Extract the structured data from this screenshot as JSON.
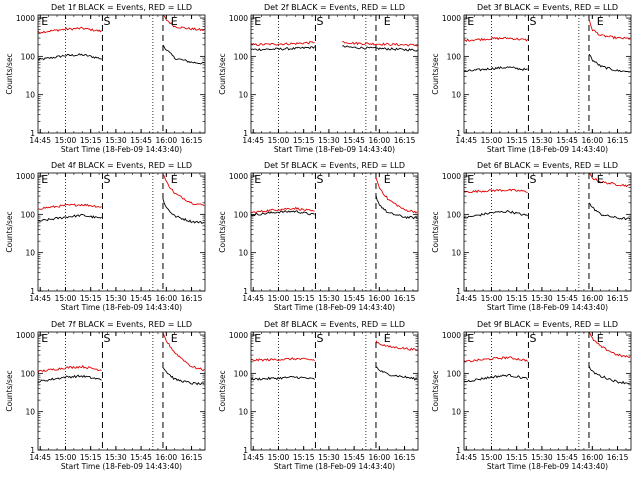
{
  "figure": {
    "panel_order": [
      "1f",
      "2f",
      "3f",
      "4f",
      "5f",
      "6f",
      "7f",
      "8f",
      "9f"
    ],
    "colors": {
      "events": "#000000",
      "lld": "#e00000",
      "background": "#ffffff"
    },
    "xlabel": "Start Time (18-Feb-09 14:43:40)",
    "ylabel": "Counts/sec",
    "x_ticks": [
      "14:45",
      "15:00",
      "15:15",
      "15:30",
      "15:45",
      "16:00",
      "16:15"
    ],
    "y_ticks": [
      "1",
      "10",
      "100",
      "1000"
    ],
    "x_dotted_lines": [
      "15:00",
      "15:52"
    ],
    "x_dashed_lines": [
      "15:22",
      "15:58"
    ],
    "markers": [
      {
        "label": "E",
        "time": "14:45"
      },
      {
        "label": "S",
        "time": "15:22"
      },
      {
        "label": "E",
        "time": "16:02"
      }
    ]
  },
  "chart_data": [
    {
      "panel": "1f",
      "type": "line",
      "title": "Det 1f BLACK = Events, RED = LLD",
      "xlabel": "Start Time (18-Feb-09 14:43:40)",
      "ylabel": "Counts/sec",
      "xlim": [
        "14:43:40",
        "16:23"
      ],
      "ylim": [
        1,
        1200
      ],
      "yscale": "log",
      "grid": false,
      "legend": "none",
      "series": [
        {
          "name": "Events",
          "color": "#000000",
          "x": [
            "14:43",
            "15:00",
            "15:10",
            "15:20",
            "15:22"
          ],
          "values": [
            80,
            105,
            110,
            90,
            85
          ]
        },
        {
          "name": "LLD",
          "color": "#e00000",
          "x": [
            "14:43",
            "15:00",
            "15:10",
            "15:20",
            "15:22"
          ],
          "values": [
            420,
            510,
            540,
            460,
            450
          ]
        },
        {
          "name": "Events",
          "color": "#000000",
          "x": [
            "15:58",
            "16:00",
            "16:05",
            "16:15",
            "16:23"
          ],
          "values": [
            200,
            150,
            90,
            70,
            65
          ]
        },
        {
          "name": "LLD",
          "color": "#e00000",
          "x": [
            "15:58",
            "16:00",
            "16:05",
            "16:15",
            "16:23"
          ],
          "values": [
            1200,
            900,
            600,
            520,
            480
          ]
        }
      ]
    },
    {
      "panel": "2f",
      "type": "line",
      "title": "Det 2f BLACK = Events, RED = LLD",
      "xlabel": "Start Time (18-Feb-09 14:43:40)",
      "ylabel": "Counts/sec",
      "xlim": [
        "14:43:40",
        "16:23"
      ],
      "ylim": [
        1,
        1200
      ],
      "yscale": "log",
      "grid": false,
      "legend": "none",
      "series": [
        {
          "name": "Events",
          "color": "#000000",
          "x": [
            "14:43",
            "15:00",
            "15:10",
            "15:20",
            "15:22"
          ],
          "values": [
            150,
            155,
            160,
            170,
            180
          ]
        },
        {
          "name": "LLD",
          "color": "#e00000",
          "x": [
            "14:43",
            "15:00",
            "15:10",
            "15:20",
            "15:22"
          ],
          "values": [
            200,
            210,
            215,
            230,
            240
          ]
        },
        {
          "name": "Events",
          "color": "#000000",
          "x": [
            "15:38",
            "15:45",
            "16:00",
            "16:15",
            "16:23"
          ],
          "values": [
            180,
            170,
            160,
            150,
            145
          ]
        },
        {
          "name": "LLD",
          "color": "#e00000",
          "x": [
            "15:38",
            "15:45",
            "16:00",
            "16:15",
            "16:23"
          ],
          "values": [
            240,
            220,
            210,
            200,
            195
          ]
        }
      ]
    },
    {
      "panel": "3f",
      "type": "line",
      "title": "Det 3f BLACK = Events, RED = LLD",
      "xlabel": "Start Time (18-Feb-09 14:43:40)",
      "ylabel": "Counts/sec",
      "xlim": [
        "14:43:40",
        "16:23"
      ],
      "ylim": [
        1,
        1200
      ],
      "yscale": "log",
      "grid": false,
      "legend": "none",
      "series": [
        {
          "name": "Events",
          "color": "#000000",
          "x": [
            "14:43",
            "15:00",
            "15:10",
            "15:20",
            "15:22"
          ],
          "values": [
            40,
            48,
            52,
            45,
            44
          ]
        },
        {
          "name": "LLD",
          "color": "#e00000",
          "x": [
            "14:43",
            "15:00",
            "15:10",
            "15:20",
            "15:22"
          ],
          "values": [
            260,
            290,
            300,
            270,
            265
          ]
        },
        {
          "name": "Events",
          "color": "#000000",
          "x": [
            "15:58",
            "16:00",
            "16:05",
            "16:15",
            "16:23"
          ],
          "values": [
            120,
            80,
            55,
            42,
            40
          ]
        },
        {
          "name": "LLD",
          "color": "#e00000",
          "x": [
            "15:58",
            "16:00",
            "16:05",
            "16:15",
            "16:23"
          ],
          "values": [
            900,
            500,
            350,
            300,
            290
          ]
        }
      ]
    },
    {
      "panel": "4f",
      "type": "line",
      "title": "Det 4f BLACK = Events, RED = LLD",
      "xlabel": "Start Time (18-Feb-09 14:43:40)",
      "ylabel": "Counts/sec",
      "xlim": [
        "14:43:40",
        "16:23"
      ],
      "ylim": [
        1,
        1200
      ],
      "yscale": "log",
      "grid": false,
      "legend": "none",
      "series": [
        {
          "name": "Events",
          "color": "#000000",
          "x": [
            "14:43",
            "15:00",
            "15:10",
            "15:20",
            "15:22"
          ],
          "values": [
            65,
            85,
            95,
            80,
            78
          ]
        },
        {
          "name": "LLD",
          "color": "#e00000",
          "x": [
            "14:43",
            "15:00",
            "15:10",
            "15:20",
            "15:22"
          ],
          "values": [
            140,
            170,
            180,
            160,
            150
          ]
        },
        {
          "name": "Events",
          "color": "#000000",
          "x": [
            "15:58",
            "16:00",
            "16:05",
            "16:15",
            "16:23"
          ],
          "values": [
            250,
            150,
            90,
            65,
            60
          ]
        },
        {
          "name": "LLD",
          "color": "#e00000",
          "x": [
            "15:58",
            "16:00",
            "16:05",
            "16:15",
            "16:23"
          ],
          "values": [
            1200,
            700,
            350,
            200,
            170
          ]
        }
      ]
    },
    {
      "panel": "5f",
      "type": "line",
      "title": "Det 5f BLACK = Events, RED = LLD",
      "xlabel": "Start Time (18-Feb-09 14:43:40)",
      "ylabel": "Counts/sec",
      "xlim": [
        "14:43:40",
        "16:23"
      ],
      "ylim": [
        1,
        1200
      ],
      "yscale": "log",
      "grid": false,
      "legend": "none",
      "series": [
        {
          "name": "Events",
          "color": "#000000",
          "x": [
            "14:43",
            "15:00",
            "15:10",
            "15:20",
            "15:22"
          ],
          "values": [
            95,
            115,
            120,
            100,
            98
          ]
        },
        {
          "name": "LLD",
          "color": "#e00000",
          "x": [
            "14:43",
            "15:00",
            "15:10",
            "15:20",
            "15:22"
          ],
          "values": [
            110,
            135,
            145,
            120,
            115
          ]
        },
        {
          "name": "Events",
          "color": "#000000",
          "x": [
            "15:58",
            "16:00",
            "16:05",
            "16:15",
            "16:23"
          ],
          "values": [
            300,
            180,
            110,
            85,
            80
          ]
        },
        {
          "name": "LLD",
          "color": "#e00000",
          "x": [
            "15:58",
            "16:00",
            "16:05",
            "16:15",
            "16:23"
          ],
          "values": [
            900,
            500,
            250,
            130,
            115
          ]
        }
      ]
    },
    {
      "panel": "6f",
      "type": "line",
      "title": "Det 6f BLACK = Events, RED = LLD",
      "xlabel": "Start Time (18-Feb-09 14:43:40)",
      "ylabel": "Counts/sec",
      "xlim": [
        "14:43:40",
        "16:23"
      ],
      "ylim": [
        1,
        1200
      ],
      "yscale": "log",
      "grid": false,
      "legend": "none",
      "series": [
        {
          "name": "Events",
          "color": "#000000",
          "x": [
            "14:43",
            "15:00",
            "15:10",
            "15:20",
            "15:22"
          ],
          "values": [
            80,
            110,
            120,
            95,
            92
          ]
        },
        {
          "name": "LLD",
          "color": "#e00000",
          "x": [
            "14:43",
            "15:00",
            "15:10",
            "15:20",
            "15:22"
          ],
          "values": [
            380,
            420,
            430,
            400,
            390
          ]
        },
        {
          "name": "Events",
          "color": "#000000",
          "x": [
            "15:58",
            "16:00",
            "16:05",
            "16:15",
            "16:23"
          ],
          "values": [
            200,
            150,
            100,
            80,
            75
          ]
        },
        {
          "name": "LLD",
          "color": "#e00000",
          "x": [
            "15:58",
            "16:00",
            "16:05",
            "16:15",
            "16:23"
          ],
          "values": [
            1200,
            900,
            700,
            600,
            550
          ]
        }
      ]
    },
    {
      "panel": "7f",
      "type": "line",
      "title": "Det 7f BLACK = Events, RED = LLD",
      "xlabel": "Start Time (18-Feb-09 14:43:40)",
      "ylabel": "Counts/sec",
      "xlim": [
        "14:43:40",
        "16:23"
      ],
      "ylim": [
        1,
        1200
      ],
      "yscale": "log",
      "grid": false,
      "legend": "none",
      "series": [
        {
          "name": "Events",
          "color": "#000000",
          "x": [
            "14:43",
            "15:00",
            "15:10",
            "15:20",
            "15:22"
          ],
          "values": [
            60,
            80,
            85,
            70,
            68
          ]
        },
        {
          "name": "LLD",
          "color": "#e00000",
          "x": [
            "14:43",
            "15:00",
            "15:10",
            "15:20",
            "15:22"
          ],
          "values": [
            110,
            140,
            150,
            125,
            120
          ]
        },
        {
          "name": "Events",
          "color": "#000000",
          "x": [
            "15:58",
            "16:00",
            "16:05",
            "16:15",
            "16:23"
          ],
          "values": [
            150,
            110,
            70,
            55,
            52
          ]
        },
        {
          "name": "LLD",
          "color": "#e00000",
          "x": [
            "15:58",
            "16:00",
            "16:05",
            "16:15",
            "16:23"
          ],
          "values": [
            1100,
            700,
            350,
            150,
            120
          ]
        }
      ]
    },
    {
      "panel": "8f",
      "type": "line",
      "title": "Det 8f BLACK = Events, RED = LLD",
      "xlabel": "Start Time (18-Feb-09 14:43:40)",
      "ylabel": "Counts/sec",
      "xlim": [
        "14:43:40",
        "16:23"
      ],
      "ylim": [
        1,
        1200
      ],
      "yscale": "log",
      "grid": false,
      "legend": "none",
      "series": [
        {
          "name": "Events",
          "color": "#000000",
          "x": [
            "14:43",
            "15:00",
            "15:10",
            "15:20",
            "15:22"
          ],
          "values": [
            70,
            75,
            80,
            72,
            70
          ]
        },
        {
          "name": "LLD",
          "color": "#e00000",
          "x": [
            "14:43",
            "15:00",
            "15:10",
            "15:20",
            "15:22"
          ],
          "values": [
            220,
            230,
            240,
            225,
            220
          ]
        },
        {
          "name": "Events",
          "color": "#000000",
          "x": [
            "15:58",
            "16:00",
            "16:05",
            "16:15",
            "16:23"
          ],
          "values": [
            150,
            120,
            95,
            80,
            70
          ]
        },
        {
          "name": "LLD",
          "color": "#e00000",
          "x": [
            "15:58",
            "16:00",
            "16:05",
            "16:15",
            "16:23"
          ],
          "values": [
            700,
            600,
            500,
            450,
            400
          ]
        }
      ]
    },
    {
      "panel": "9f",
      "type": "line",
      "title": "Det 9f BLACK = Events, RED = LLD",
      "xlabel": "Start Time (18-Feb-09 14:43:40)",
      "ylabel": "Counts/sec",
      "xlim": [
        "14:43:40",
        "16:23"
      ],
      "ylim": [
        1,
        1200
      ],
      "yscale": "log",
      "grid": false,
      "legend": "none",
      "series": [
        {
          "name": "Events",
          "color": "#000000",
          "x": [
            "14:43",
            "15:00",
            "15:10",
            "15:20",
            "15:22"
          ],
          "values": [
            60,
            80,
            90,
            75,
            72
          ]
        },
        {
          "name": "LLD",
          "color": "#e00000",
          "x": [
            "14:43",
            "15:00",
            "15:10",
            "15:20",
            "15:22"
          ],
          "values": [
            200,
            240,
            260,
            220,
            215
          ]
        },
        {
          "name": "Events",
          "color": "#000000",
          "x": [
            "15:58",
            "16:00",
            "16:05",
            "16:15",
            "16:23"
          ],
          "values": [
            150,
            110,
            85,
            60,
            55
          ]
        },
        {
          "name": "LLD",
          "color": "#e00000",
          "x": [
            "15:58",
            "16:00",
            "16:05",
            "16:15",
            "16:23"
          ],
          "values": [
            1200,
            800,
            500,
            300,
            260
          ]
        }
      ]
    }
  ]
}
